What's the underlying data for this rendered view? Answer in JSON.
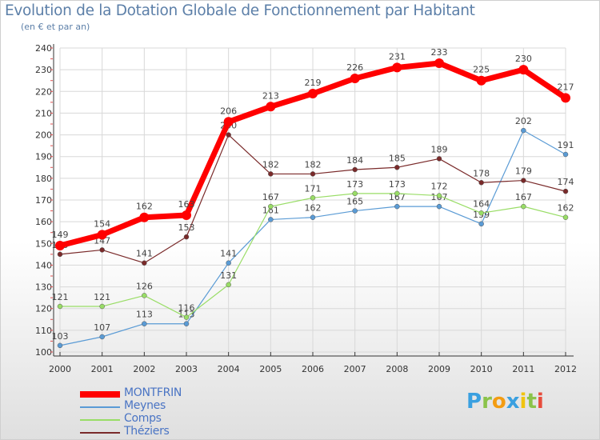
{
  "title": "Evolution de la Dotation Globale de Fonctionnement par Habitant",
  "subtitle": "(en € et par an)",
  "colors": {
    "text": "#5c7fa8",
    "legend_text": "#4a74c4",
    "grid": "#d8d8d8",
    "axis": "#333333"
  },
  "chart_data": {
    "type": "line",
    "title": "Evolution de la Dotation Globale de Fonctionnement par Habitant",
    "subtitle": "(en € et par an)",
    "xlabel": "",
    "ylabel": "",
    "ylim": [
      100,
      240
    ],
    "yticks": [
      100,
      110,
      120,
      130,
      140,
      150,
      160,
      170,
      180,
      190,
      200,
      210,
      220,
      230,
      240
    ],
    "grid": true,
    "legend_position": "bottom-left",
    "categories": [
      "2000",
      "2001",
      "2002",
      "2003",
      "2004",
      "2005",
      "2006",
      "2007",
      "2008",
      "2009",
      "2010",
      "2011",
      "2012"
    ],
    "series": [
      {
        "name": "MONTFRIN",
        "color": "#ff0000",
        "style": "thick",
        "values": [
          149,
          154,
          162,
          163,
          206,
          213,
          219,
          226,
          231,
          233,
          225,
          230,
          217
        ]
      },
      {
        "name": "Meynes",
        "color": "#5a9bd5",
        "style": "thin",
        "values": [
          103,
          107,
          113,
          113,
          141,
          161,
          162,
          165,
          167,
          167,
          159,
          202,
          191
        ]
      },
      {
        "name": "Comps",
        "color": "#99dd66",
        "style": "thin",
        "values": [
          121,
          121,
          126,
          116,
          131,
          167,
          171,
          173,
          173,
          172,
          164,
          167,
          162
        ]
      },
      {
        "name": "Théziers",
        "color": "#7a2a2a",
        "style": "thin",
        "values": [
          145,
          147,
          141,
          153,
          200,
          182,
          182,
          184,
          185,
          189,
          178,
          179,
          174
        ]
      }
    ]
  },
  "logo": {
    "letters": [
      "P",
      "r",
      "o",
      "x",
      "i",
      "t",
      "i"
    ],
    "colors": [
      "#3aa0e0",
      "#8bc34a",
      "#f39c12",
      "#3aa0e0",
      "#f1c40f",
      "#8bc34a",
      "#e74c3c"
    ]
  }
}
